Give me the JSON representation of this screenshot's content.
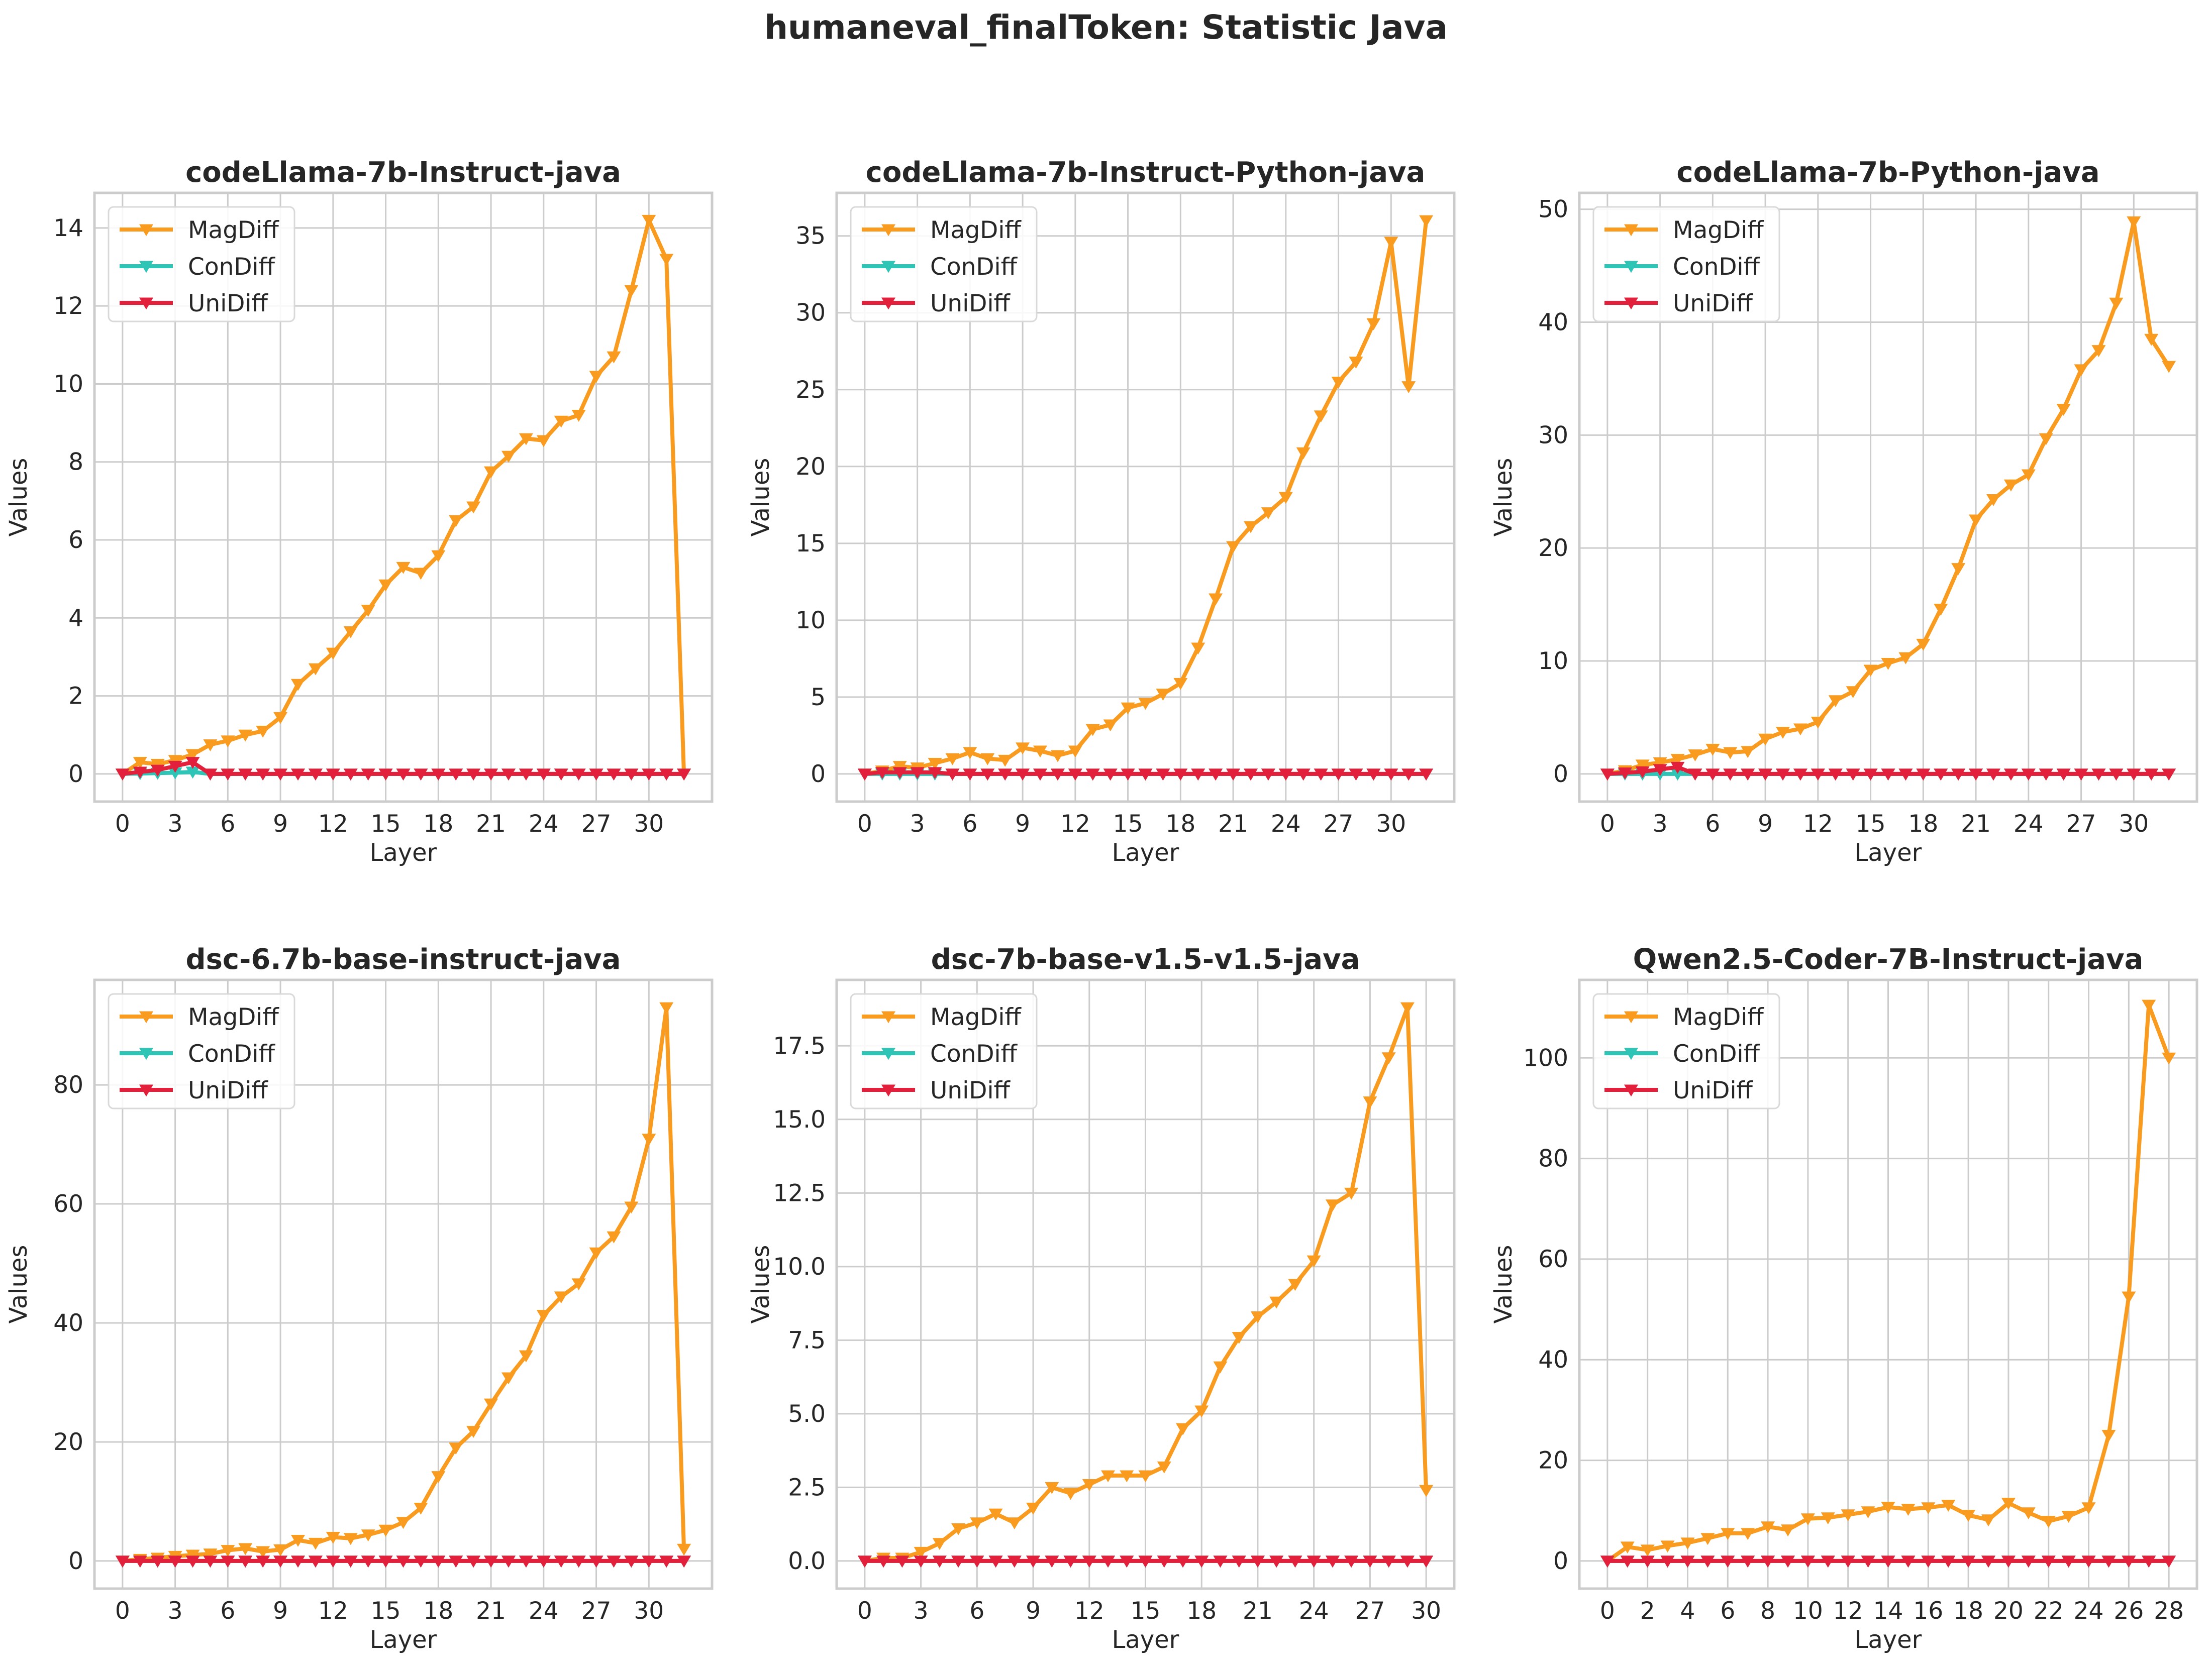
{
  "figure": {
    "title": "humaneval_finalToken: Statistic Java"
  },
  "chart_data": [
    {
      "type": "line",
      "title": "codeLlama-7b-Instruct-java",
      "xlabel": "Layer",
      "ylabel": "Values",
      "xticks": [
        0,
        3,
        6,
        9,
        12,
        15,
        18,
        21,
        24,
        27,
        30
      ],
      "yticks": [
        0,
        2,
        4,
        6,
        8,
        10,
        12,
        14
      ],
      "xlim": [
        -1.6,
        33.6
      ],
      "ylim": [
        -0.71,
        14.9
      ],
      "grid": true,
      "legend": "top-left",
      "x": [
        0,
        1,
        2,
        3,
        4,
        5,
        6,
        7,
        8,
        9,
        10,
        11,
        12,
        13,
        14,
        15,
        16,
        17,
        18,
        19,
        20,
        21,
        22,
        23,
        24,
        25,
        26,
        27,
        28,
        29,
        30,
        31,
        32
      ],
      "series": [
        {
          "name": "MagDiff",
          "color": "#f89b1e",
          "values": [
            0,
            0.3,
            0.25,
            0.35,
            0.5,
            0.75,
            0.85,
            1.0,
            1.1,
            1.45,
            2.3,
            2.7,
            3.1,
            3.65,
            4.2,
            4.85,
            5.3,
            5.15,
            5.6,
            6.5,
            6.85,
            7.75,
            8.15,
            8.6,
            8.55,
            9.05,
            9.2,
            10.2,
            10.7,
            12.4,
            14.2,
            13.2,
            0
          ]
        },
        {
          "name": "ConDiff",
          "color": "#2ec4b6",
          "values": [
            0,
            0.01,
            0.02,
            0.03,
            0.05,
            0,
            0,
            0,
            0,
            0,
            0,
            0,
            0,
            0,
            0,
            0,
            0,
            0,
            0,
            0,
            0,
            0,
            0,
            0,
            0,
            0,
            0,
            0,
            0,
            0,
            0,
            0,
            0
          ]
        },
        {
          "name": "UniDiff",
          "color": "#e3203b",
          "values": [
            0,
            0.05,
            0.1,
            0.2,
            0.3,
            0,
            0,
            0,
            0,
            0,
            0,
            0,
            0,
            0,
            0,
            0,
            0,
            0,
            0,
            0,
            0,
            0,
            0,
            0,
            0,
            0,
            0,
            0,
            0,
            0,
            0,
            0,
            0
          ]
        }
      ]
    },
    {
      "type": "line",
      "title": "codeLlama-7b-Instruct-Python-java",
      "xlabel": "Layer",
      "ylabel": "Values",
      "xticks": [
        0,
        3,
        6,
        9,
        12,
        15,
        18,
        21,
        24,
        27,
        30
      ],
      "yticks": [
        0,
        5,
        10,
        15,
        20,
        25,
        30,
        35
      ],
      "xlim": [
        -1.6,
        33.6
      ],
      "ylim": [
        -1.8,
        37.8
      ],
      "grid": true,
      "legend": "top-left",
      "x": [
        0,
        1,
        2,
        3,
        4,
        5,
        6,
        7,
        8,
        9,
        10,
        11,
        12,
        13,
        14,
        15,
        16,
        17,
        18,
        19,
        20,
        21,
        22,
        23,
        24,
        25,
        26,
        27,
        28,
        29,
        30,
        31,
        32
      ],
      "series": [
        {
          "name": "MagDiff",
          "color": "#f89b1e",
          "values": [
            0,
            0.2,
            0.5,
            0.4,
            0.7,
            1.0,
            1.4,
            1.0,
            0.9,
            1.7,
            1.5,
            1.2,
            1.5,
            2.9,
            3.2,
            4.3,
            4.6,
            5.2,
            5.9,
            8.2,
            11.4,
            14.8,
            16.1,
            17.0,
            18.0,
            20.9,
            23.3,
            25.5,
            26.8,
            29.3,
            34.6,
            25.2,
            36.0
          ]
        },
        {
          "name": "ConDiff",
          "color": "#2ec4b6",
          "values": [
            0,
            0,
            0,
            0,
            0,
            0,
            0,
            0,
            0,
            0,
            0,
            0,
            0,
            0,
            0,
            0,
            0,
            0,
            0,
            0,
            0,
            0,
            0,
            0,
            0,
            0,
            0,
            0,
            0,
            0,
            0,
            0,
            0
          ]
        },
        {
          "name": "UniDiff",
          "color": "#e3203b",
          "values": [
            0,
            0.1,
            0.1,
            0.1,
            0.1,
            0,
            0,
            0,
            0,
            0,
            0,
            0,
            0,
            0,
            0,
            0,
            0,
            0,
            0,
            0,
            0,
            0,
            0,
            0,
            0,
            0,
            0,
            0,
            0,
            0,
            0,
            0,
            0
          ]
        }
      ]
    },
    {
      "type": "line",
      "title": "codeLlama-7b-Python-java",
      "xlabel": "Layer",
      "ylabel": "Values",
      "xticks": [
        0,
        3,
        6,
        9,
        12,
        15,
        18,
        21,
        24,
        27,
        30
      ],
      "yticks": [
        0,
        10,
        20,
        30,
        40,
        50
      ],
      "xlim": [
        -1.6,
        33.6
      ],
      "ylim": [
        -2.45,
        51.45
      ],
      "grid": true,
      "legend": "top-left",
      "x": [
        0,
        1,
        2,
        3,
        4,
        5,
        6,
        7,
        8,
        9,
        10,
        11,
        12,
        13,
        14,
        15,
        16,
        17,
        18,
        19,
        20,
        21,
        22,
        23,
        24,
        25,
        26,
        27,
        28,
        29,
        30,
        31,
        32
      ],
      "series": [
        {
          "name": "MagDiff",
          "color": "#f89b1e",
          "values": [
            0,
            0.3,
            0.8,
            1.0,
            1.3,
            1.7,
            2.2,
            1.9,
            2.0,
            3.1,
            3.7,
            4.0,
            4.6,
            6.5,
            7.3,
            9.2,
            9.8,
            10.3,
            11.5,
            14.6,
            18.2,
            22.5,
            24.3,
            25.6,
            26.5,
            29.7,
            32.3,
            35.8,
            37.5,
            41.7,
            48.9,
            38.5,
            36.1
          ]
        },
        {
          "name": "ConDiff",
          "color": "#2ec4b6",
          "values": [
            0,
            0,
            0,
            0,
            0,
            0,
            0,
            0,
            0,
            0,
            0,
            0,
            0,
            0,
            0,
            0,
            0,
            0,
            0,
            0,
            0,
            0,
            0,
            0,
            0,
            0,
            0,
            0,
            0,
            0,
            0,
            0,
            0
          ]
        },
        {
          "name": "UniDiff",
          "color": "#e3203b",
          "values": [
            0,
            0.1,
            0.2,
            0.4,
            0.6,
            0,
            0,
            0,
            0,
            0,
            0,
            0,
            0,
            0,
            0,
            0,
            0,
            0,
            0,
            0,
            0,
            0,
            0,
            0,
            0,
            0,
            0,
            0,
            0,
            0,
            0,
            0,
            0
          ]
        }
      ]
    },
    {
      "type": "line",
      "title": "dsc-6.7b-base-instruct-java",
      "xlabel": "Layer",
      "ylabel": "Values",
      "xticks": [
        0,
        3,
        6,
        9,
        12,
        15,
        18,
        21,
        24,
        27,
        30
      ],
      "yticks": [
        0,
        20,
        40,
        60,
        80
      ],
      "xlim": [
        -1.6,
        33.6
      ],
      "ylim": [
        -4.65,
        97.65
      ],
      "grid": true,
      "legend": "top-left",
      "x": [
        0,
        1,
        2,
        3,
        4,
        5,
        6,
        7,
        8,
        9,
        10,
        11,
        12,
        13,
        14,
        15,
        16,
        17,
        18,
        19,
        20,
        21,
        22,
        23,
        24,
        25,
        26,
        27,
        28,
        29,
        30,
        31,
        32
      ],
      "series": [
        {
          "name": "MagDiff",
          "color": "#f89b1e",
          "values": [
            0,
            0.3,
            0.5,
            0.8,
            1.0,
            1.2,
            1.8,
            2.1,
            1.6,
            1.9,
            3.5,
            3.0,
            4.0,
            3.8,
            4.4,
            5.2,
            6.5,
            8.9,
            14.2,
            19.0,
            21.8,
            26.4,
            30.8,
            34.5,
            41.3,
            44.4,
            46.6,
            51.8,
            54.5,
            59.5,
            70.9,
            93.0,
            2.0
          ]
        },
        {
          "name": "ConDiff",
          "color": "#2ec4b6",
          "values": [
            0,
            0,
            0,
            0,
            0,
            0,
            0,
            0,
            0,
            0,
            0,
            0,
            0,
            0,
            0,
            0,
            0,
            0,
            0,
            0,
            0,
            0,
            0,
            0,
            0,
            0,
            0,
            0,
            0,
            0,
            0,
            0,
            0
          ]
        },
        {
          "name": "UniDiff",
          "color": "#e3203b",
          "values": [
            0,
            0,
            0,
            0,
            0,
            0,
            0,
            0,
            0,
            0,
            0,
            0,
            0,
            0,
            0,
            0,
            0,
            0,
            0,
            0,
            0,
            0,
            0,
            0,
            0,
            0,
            0,
            0,
            0,
            0,
            0,
            0,
            0
          ]
        }
      ]
    },
    {
      "type": "line",
      "title": "dsc-7b-base-v1.5-v1.5-java",
      "xlabel": "Layer",
      "ylabel": "Values",
      "xticks": [
        0,
        3,
        6,
        9,
        12,
        15,
        18,
        21,
        24,
        27,
        30
      ],
      "yticks": [
        0.0,
        2.5,
        5.0,
        7.5,
        10.0,
        12.5,
        15.0,
        17.5
      ],
      "ytick_labels": [
        "0.0",
        "2.5",
        "5.0",
        "7.5",
        "10.0",
        "12.5",
        "15.0",
        "17.5"
      ],
      "xlim": [
        -1.5,
        31.5
      ],
      "ylim": [
        -0.94,
        19.74
      ],
      "grid": true,
      "legend": "top-left",
      "x": [
        0,
        1,
        2,
        3,
        4,
        5,
        6,
        7,
        8,
        9,
        10,
        11,
        12,
        13,
        14,
        15,
        16,
        17,
        18,
        19,
        20,
        21,
        22,
        23,
        24,
        25,
        26,
        27,
        28,
        29,
        30
      ],
      "series": [
        {
          "name": "MagDiff",
          "color": "#f89b1e",
          "values": [
            0,
            0.1,
            0.1,
            0.3,
            0.6,
            1.1,
            1.3,
            1.6,
            1.3,
            1.8,
            2.5,
            2.3,
            2.6,
            2.9,
            2.9,
            2.9,
            3.2,
            4.5,
            5.1,
            6.6,
            7.6,
            8.3,
            8.8,
            9.4,
            10.2,
            12.1,
            12.5,
            15.6,
            17.1,
            18.8,
            2.4
          ]
        },
        {
          "name": "ConDiff",
          "color": "#2ec4b6",
          "values": [
            0,
            0,
            0,
            0,
            0,
            0,
            0,
            0,
            0,
            0,
            0,
            0,
            0,
            0,
            0,
            0,
            0,
            0,
            0,
            0,
            0,
            0,
            0,
            0,
            0,
            0,
            0,
            0,
            0,
            0,
            0
          ]
        },
        {
          "name": "UniDiff",
          "color": "#e3203b",
          "values": [
            0,
            0,
            0,
            0,
            0,
            0,
            0,
            0,
            0,
            0,
            0,
            0,
            0,
            0,
            0,
            0,
            0,
            0,
            0,
            0,
            0,
            0,
            0,
            0,
            0,
            0,
            0,
            0,
            0,
            0,
            0
          ]
        }
      ]
    },
    {
      "type": "line",
      "title": "Qwen2.5-Coder-7B-Instruct-java",
      "xlabel": "Layer",
      "ylabel": "Values",
      "xticks": [
        0,
        2,
        4,
        6,
        8,
        10,
        12,
        14,
        16,
        18,
        20,
        22,
        24,
        26,
        28
      ],
      "yticks": [
        0,
        20,
        40,
        60,
        80,
        100
      ],
      "xlim": [
        -1.4,
        29.4
      ],
      "ylim": [
        -5.5,
        115.5
      ],
      "grid": true,
      "legend": "top-left",
      "x": [
        0,
        1,
        2,
        3,
        4,
        5,
        6,
        7,
        8,
        9,
        10,
        11,
        12,
        13,
        14,
        15,
        16,
        17,
        18,
        19,
        20,
        21,
        22,
        23,
        24,
        25,
        26,
        27,
        28
      ],
      "series": [
        {
          "name": "MagDiff",
          "color": "#f89b1e",
          "values": [
            0,
            2.8,
            2.2,
            3.0,
            3.6,
            4.5,
            5.5,
            5.5,
            6.8,
            6.2,
            8.4,
            8.6,
            9.2,
            9.8,
            10.7,
            10.3,
            10.6,
            11.1,
            9.1,
            8.2,
            11.5,
            9.6,
            7.9,
            8.9,
            10.6,
            25.0,
            52.5,
            110.5,
            100.0
          ]
        },
        {
          "name": "ConDiff",
          "color": "#2ec4b6",
          "values": [
            0,
            0,
            0,
            0,
            0,
            0,
            0,
            0,
            0,
            0,
            0,
            0,
            0,
            0,
            0,
            0,
            0,
            0,
            0,
            0,
            0,
            0,
            0,
            0,
            0,
            0,
            0,
            0,
            0
          ]
        },
        {
          "name": "UniDiff",
          "color": "#e3203b",
          "values": [
            0,
            0,
            0,
            0,
            0,
            0,
            0,
            0,
            0,
            0,
            0,
            0,
            0,
            0,
            0,
            0,
            0,
            0,
            0,
            0,
            0,
            0,
            0,
            0,
            0,
            0,
            0,
            0,
            0
          ]
        }
      ]
    }
  ]
}
